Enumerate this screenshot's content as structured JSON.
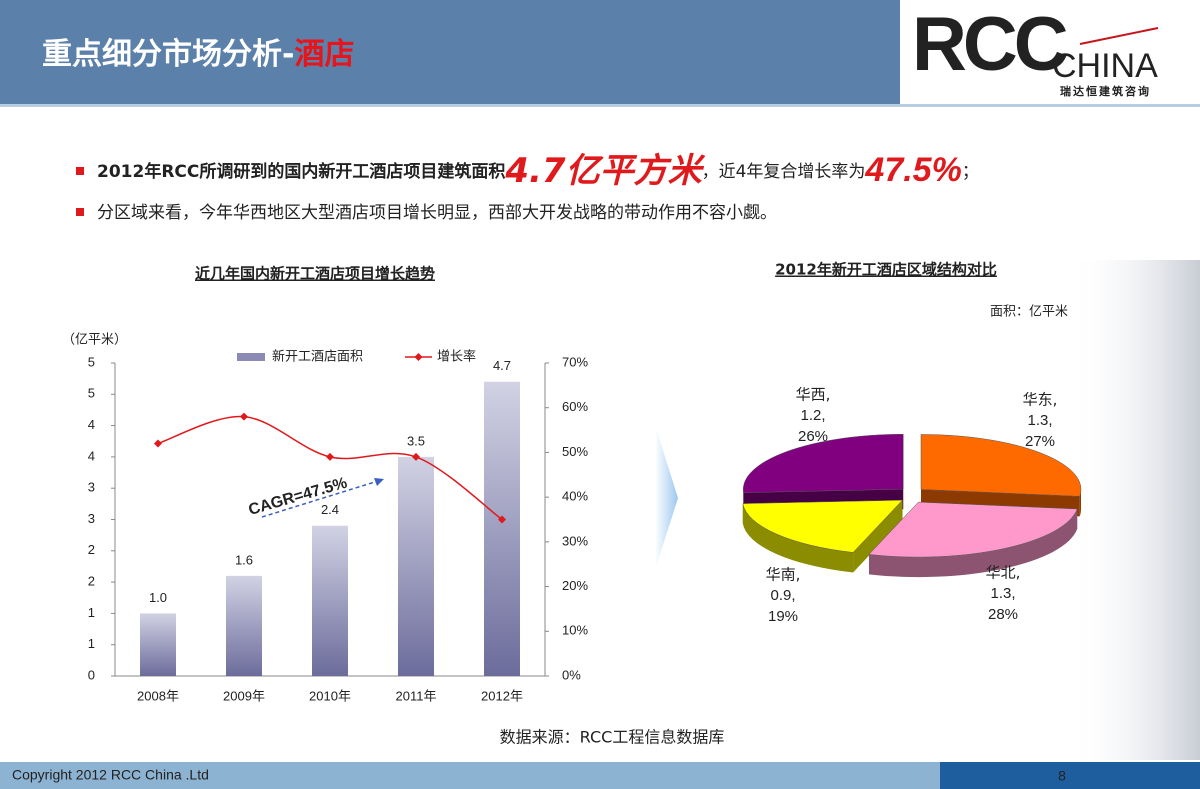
{
  "header": {
    "title": "重点细分市场分析-",
    "title_highlight": "酒店",
    "logo": "RCC",
    "logo_sub": "CHINA",
    "logo_caption": "瑞达恒建筑咨询"
  },
  "bullets": [
    [
      "2012年RCC所调研到的国内新开工酒店项目建筑面积",
      "4.7亿平方米",
      "，近4年复合增长率为",
      "47.5%",
      "；"
    ],
    [
      "分区域来看，今年华西地区大型酒店项目增长明显，西部大开发战略的带动作用不容小觑。"
    ]
  ],
  "chart_data": [
    {
      "type": "combo",
      "title": "近几年国内新开工酒店项目增长趋势",
      "y_label": "（亿平米）",
      "annotation": "CAGR=47.5%",
      "categories": [
        "2008年",
        "2009年",
        "2010年",
        "2011年",
        "2012年"
      ],
      "series": [
        {
          "name": "新开工酒店面积",
          "color": "#8a8ab4",
          "values": [
            1.0,
            1.6,
            2.4,
            3.5,
            4.7
          ],
          "value_labels": [
            "1.0",
            "1.6",
            "2.4",
            "3.5",
            "4.7"
          ]
        },
        {
          "name": "增长率",
          "color": "#e0191c",
          "values": [
            52,
            58,
            49,
            49,
            35
          ],
          "axis": "y2"
        }
      ],
      "ylim": [
        0,
        5
      ],
      "yticks": [
        0,
        {
          "value": 0.5,
          "label": "1"
        },
        {
          "value": 1,
          "label": "1"
        },
        {
          "value": 1.5,
          "label": "2"
        },
        {
          "value": 2,
          "label": "2"
        },
        {
          "value": 2.5,
          "label": "3"
        },
        {
          "value": 3,
          "label": "3"
        },
        {
          "value": 3.5,
          "label": "4"
        },
        {
          "value": 4,
          "label": "4"
        },
        {
          "value": 4.5,
          "label": "5"
        },
        {
          "value": 5,
          "label": "5"
        }
      ],
      "y2lim": [
        0,
        70
      ],
      "y2ticks": [
        {
          "value": 0,
          "label": "0%"
        },
        {
          "value": 10,
          "label": "10%"
        },
        {
          "value": 20,
          "label": "20%"
        },
        {
          "value": 30,
          "label": "30%"
        },
        {
          "value": 40,
          "label": "40%"
        },
        {
          "value": 50,
          "label": "50%"
        },
        {
          "value": 60,
          "label": "60%"
        },
        {
          "value": 70,
          "label": "70%"
        }
      ],
      "legend": "top"
    },
    {
      "type": "pie",
      "title": "2012年新开工酒店区域结构对比",
      "unit_label": "面积：亿平米",
      "categories": [
        "华东,",
        "华北,",
        "华南,",
        "华西,"
      ],
      "amount_labels": [
        "1.3,",
        "1.3,",
        "0.9,",
        "1.2,"
      ],
      "values": [
        27,
        28,
        19,
        26
      ],
      "value_labels": [
        "27%",
        "28%",
        "19%",
        "26%"
      ],
      "colors": [
        "#ff6a00",
        "#ff99cc",
        "#ffff00",
        "#800080"
      ]
    }
  ],
  "source": "数据来源：RCC工程信息数据库",
  "footer": {
    "copyright": "Copyright    2012 RCC China .Ltd",
    "page": "8"
  }
}
